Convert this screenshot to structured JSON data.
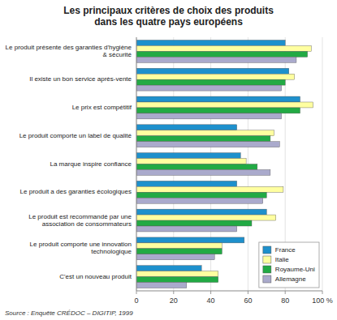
{
  "chart_data": {
    "type": "bar",
    "orientation": "horizontal",
    "title": "Les principaux critères de choix des produits\ndans les quatre pays européens",
    "categories": [
      "Le produit présente des garanties d'hygiène\n& sécurité",
      "Il existe un bon service après-vente",
      "Le prix est compétitif",
      "Le produit comporte un label de qualité",
      "La marque inspire confiance",
      "Le produit a des garanties écologiques",
      "Le produit est recommandé par une\nassociation de consommateurs",
      "Le produit comporte une innovation\ntechnologique",
      "C'est un nouveau produit"
    ],
    "series": [
      {
        "name": "France",
        "color": "#1E90CC",
        "values": [
          80,
          82,
          88,
          54,
          56,
          54,
          70,
          58,
          35
        ]
      },
      {
        "name": "Italie",
        "color": "#FFFFA0",
        "values": [
          94,
          85,
          95,
          74,
          59,
          79,
          75,
          46,
          44
        ]
      },
      {
        "name": "Royaume-Uni",
        "color": "#22AA44",
        "values": [
          92,
          80,
          88,
          72,
          65,
          70,
          62,
          46,
          44
        ]
      },
      {
        "name": "Allemagne",
        "color": "#AAAACC",
        "values": [
          86,
          78,
          78,
          77,
          72,
          68,
          54,
          42,
          27
        ]
      }
    ],
    "xlim": [
      0,
      100
    ],
    "xticks": [
      0,
      20,
      40,
      60,
      80,
      {
        "value": 100,
        "label": "100 %"
      }
    ],
    "grid": true,
    "legend": "lower right",
    "annotations": [
      "Source : Enquête CRÉDOC – DIGITIP, 1999"
    ]
  }
}
